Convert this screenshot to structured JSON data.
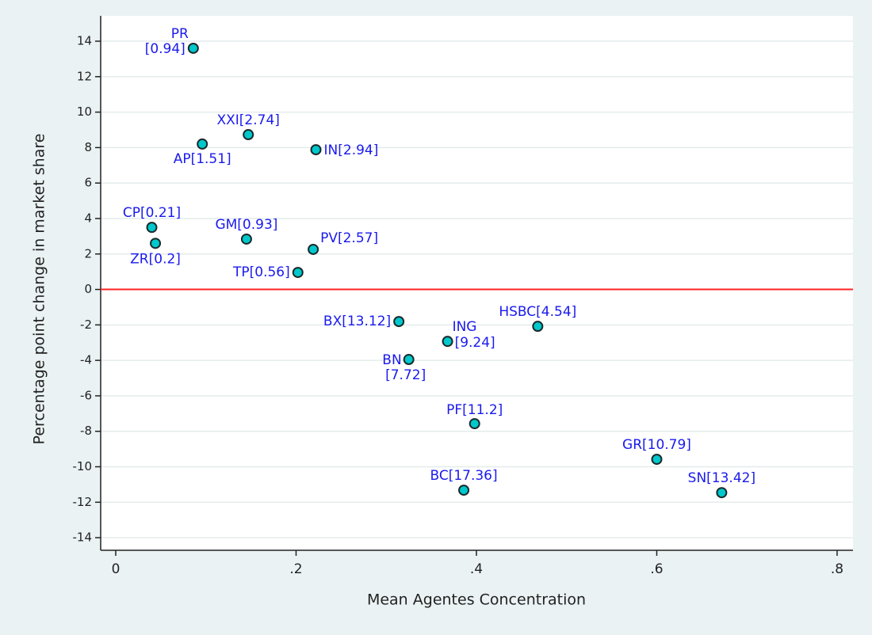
{
  "chart_data": {
    "type": "scatter",
    "xlabel": "Mean Agentes Concentration",
    "ylabel": "Percentage point change in market share",
    "xlim": [
      -0.0167,
      0.8176
    ],
    "ylim": [
      -14.71,
      15.43
    ],
    "xticks": [
      0,
      {
        "value": 0.2,
        "label": ".2"
      },
      {
        "value": 0.4,
        "label": ".4"
      },
      {
        "value": 0.6,
        "label": ".6"
      },
      {
        "value": 0.8,
        "label": ".8"
      }
    ],
    "yticks": [
      -14,
      -12,
      -10,
      -8,
      -6,
      -4,
      -2,
      0,
      2,
      4,
      6,
      8,
      10,
      12,
      14
    ],
    "grid": true,
    "reference_line": {
      "y": 0,
      "color": "#ff2020"
    },
    "label_color": "#1a1aee",
    "series": [
      {
        "color": "#00c8cc",
        "x": [
          0.086,
          0.147,
          0.096,
          0.222,
          0.04,
          0.044,
          0.145,
          0.219,
          0.202,
          0.314,
          0.468,
          0.368,
          0.325,
          0.398,
          0.6,
          0.386,
          0.672
        ],
        "y": [
          13.6,
          8.73,
          8.2,
          7.88,
          3.5,
          2.6,
          2.84,
          2.26,
          0.96,
          -1.81,
          -2.08,
          -2.93,
          -3.95,
          -7.57,
          -9.58,
          -11.32,
          -11.46
        ],
        "labels": [
          [
            "PR",
            "[0.94]"
          ],
          [
            "XXI[2.74]"
          ],
          [
            "AP[1.51]"
          ],
          [
            "IN[2.94]"
          ],
          [
            "CP[0.21]"
          ],
          [
            "ZR[0.2]"
          ],
          [
            "GM[0.93]"
          ],
          [
            "PV[2.57]"
          ],
          [
            "TP[0.56]"
          ],
          [
            "BX[13.12]"
          ],
          [
            "HSBC[4.54]"
          ],
          [
            "ING",
            "[9.24]"
          ],
          [
            "BN",
            "[7.72]"
          ],
          [
            "PF[11.2]"
          ],
          [
            "GR[10.79]"
          ],
          [
            "BC[17.36]"
          ],
          [
            "SN[13.42]"
          ]
        ]
      }
    ]
  }
}
